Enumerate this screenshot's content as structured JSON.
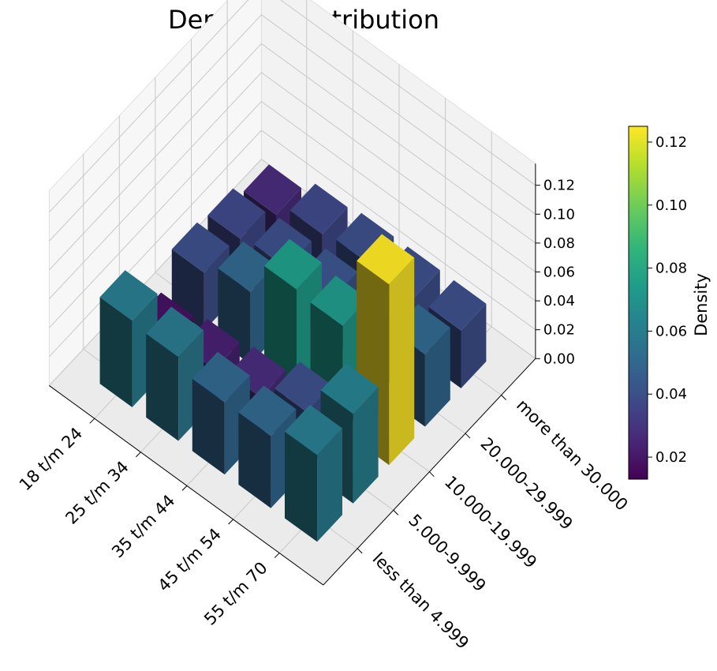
{
  "chart_data": {
    "type": "bar3d",
    "title": "Denmark Distribution",
    "x_categories": [
      "18 t/m 24",
      "25 t/m 34",
      "35 t/m 44",
      "45 t/m 54",
      "55 t/m 70"
    ],
    "y_categories": [
      "less than 4.999",
      "5.000-9.999",
      "10.000-19.999",
      "20.000-29.999",
      "more than 30.000"
    ],
    "zlim": [
      0,
      0.125
    ],
    "z_ticks": [
      "0.00",
      "0.02",
      "0.04",
      "0.06",
      "0.08",
      "0.10",
      "0.12"
    ],
    "colorbar": {
      "label": "Density",
      "min": 0.013,
      "max": 0.125,
      "ticks": [
        "0.02",
        "0.04",
        "0.06",
        "0.08",
        "0.10",
        "0.12"
      ],
      "colormap": "viridis"
    },
    "values": [
      [
        0.06,
        0.018,
        0.04,
        0.037,
        0.027
      ],
      [
        0.058,
        0.023,
        0.05,
        0.04,
        0.037
      ],
      [
        0.05,
        0.027,
        0.075,
        0.042,
        0.04
      ],
      [
        0.05,
        0.04,
        0.073,
        0.045,
        0.04
      ],
      [
        0.06,
        0.062,
        0.125,
        0.05,
        0.04
      ]
    ],
    "grid": true,
    "view": "isometric"
  }
}
